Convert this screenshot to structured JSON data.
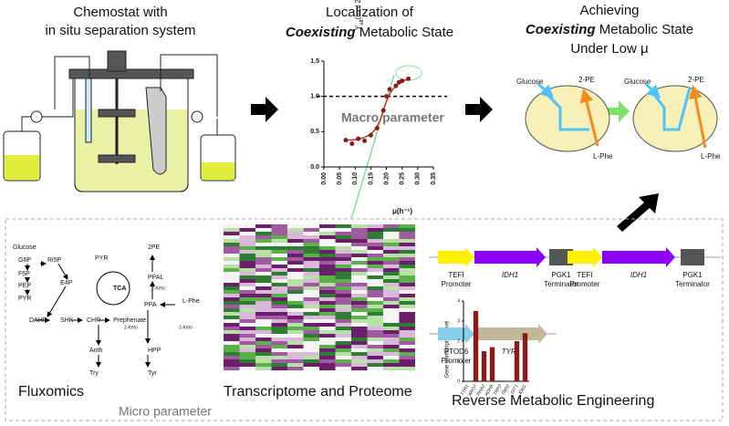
{
  "panels": {
    "chemostat": {
      "title_lines": [
        "Chemostat with",
        "in situ separation system"
      ]
    },
    "localization": {
      "title_line1": "Localization of",
      "title_emph": "Coexisting",
      "title_rest": "Metabolic State"
    },
    "achieving": {
      "title_line1": "Achieving",
      "title_emph": "Coexisting",
      "title_rest": "Metabolic State",
      "title_line3": "Under Low μ",
      "left": {
        "glucose": "Glucose",
        "product": "2-PE",
        "substrate": "L-Phe"
      },
      "right": {
        "glucose": "Glucose",
        "product": "2-PE",
        "substrate": "L-Phe"
      }
    }
  },
  "yield_chart": {
    "type": "scatter",
    "y_label_main": "Y",
    "y_label_sub": "alt",
    "y_label_rest": "(mol 2-PE/mol L-Phe)",
    "x_label": "μ(h⁻¹)",
    "annotation": "Macro parameter",
    "reference_value": 1.0,
    "x": [
      0.07,
      0.09,
      0.11,
      0.13,
      0.15,
      0.17,
      0.19,
      0.2,
      0.21,
      0.23,
      0.24,
      0.25,
      0.27
    ],
    "values": [
      0.38,
      0.33,
      0.4,
      0.37,
      0.45,
      0.55,
      0.8,
      1.0,
      1.1,
      1.15,
      1.2,
      1.22,
      1.25
    ],
    "color": "#8b1a1a",
    "xlim": [
      0,
      0.35
    ],
    "ylim": [
      0,
      1.5
    ],
    "xticks": [
      {
        "value": 0,
        "label": "0.00"
      },
      0.05,
      {
        "value": 0.1,
        "label": "0.10"
      },
      0.15,
      {
        "value": 0.2,
        "label": "0.20"
      },
      0.25,
      {
        "value": 0.3,
        "label": "0.30"
      },
      0.35
    ],
    "yticks": [
      {
        "value": 0,
        "label": "0.0"
      },
      0.5,
      {
        "value": 1,
        "label": "1.0"
      },
      1.5
    ]
  },
  "fluxomics": {
    "label": "Fluxomics",
    "nodes": [
      "Glucose",
      "G6P",
      "Ri5P",
      "F6P",
      "PEP",
      "E4P",
      "PYR",
      "DAHP",
      "SHK",
      "CHR",
      "Prephenate",
      "Anth",
      "Try",
      "HPP",
      "Tyr",
      "PYR",
      "TCA",
      "2PE",
      "PPAL",
      "PPA",
      "L-Phe",
      "2-Keto",
      "2-Keto",
      "2-Keto"
    ]
  },
  "omics": {
    "label": "Transcriptome and Proteome"
  },
  "micro_label": "Micro parameter",
  "engineering": {
    "label": "Reverse Metabolic Engineering",
    "constructs": [
      {
        "name": "TEFI",
        "role": "Promoter"
      },
      {
        "name": "IDH1"
      },
      {
        "name": "PGK1",
        "role": "Terminator"
      },
      {
        "name": "TEFI",
        "role": "Promoter"
      },
      {
        "name": "IDH1"
      },
      {
        "name": "PGK1",
        "role": "Terminator"
      },
      {
        "name": "PTOD6",
        "role": "Promoter"
      },
      {
        "name": "TYR1"
      }
    ],
    "bar_chart": {
      "type": "bar",
      "y_label": "Gene transcription level",
      "categories": [
        "TYR1",
        "ARO7",
        "PHA2",
        "ADH5",
        "TRP3",
        "TRP2",
        "GIT1",
        "IDH1"
      ],
      "values": [
        0.03,
        3.5,
        1.5,
        1.7,
        0.04,
        0.03,
        2.0,
        2.4
      ],
      "colors": [
        "#3f5f6f",
        "#8b1a1a",
        "#8b1a1a",
        "#8b1a1a",
        "#3f5f6f",
        "#3f5f6f",
        "#8b1a1a",
        "#8b1a1a"
      ],
      "ylim": [
        0,
        4
      ],
      "yticks": [
        0,
        1,
        2,
        3,
        4
      ]
    }
  }
}
